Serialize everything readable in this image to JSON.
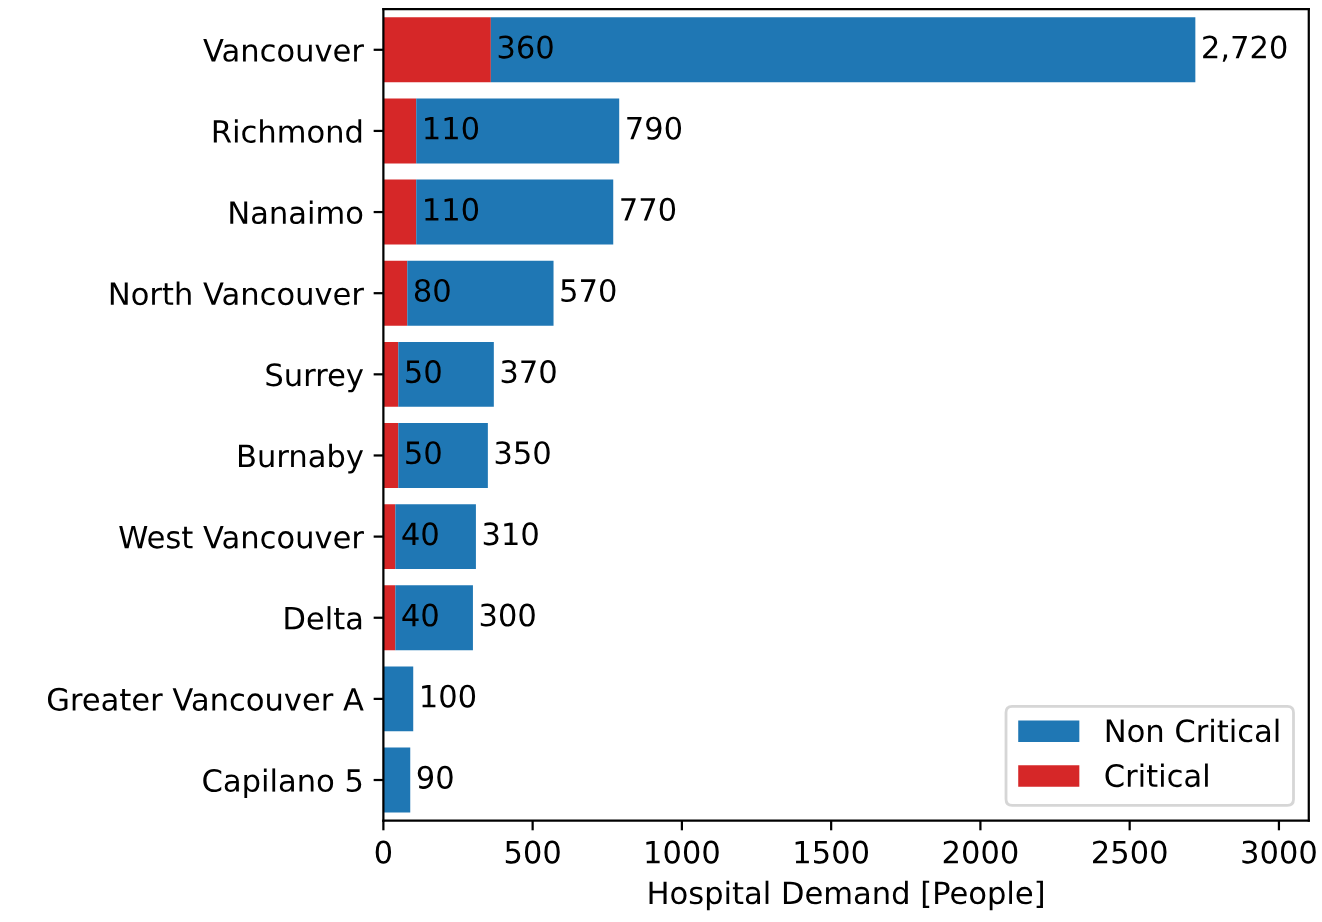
{
  "chart_data": {
    "type": "bar",
    "orientation": "horizontal",
    "stacked": true,
    "xlabel": "Hospital Demand [People]",
    "categories": [
      "Vancouver",
      "Richmond",
      "Nanaimo",
      "North Vancouver",
      "Surrey",
      "Burnaby",
      "West Vancouver",
      "Delta",
      "Greater Vancouver A",
      "Capilano 5"
    ],
    "series": [
      {
        "name": "Critical",
        "color": "#d62728",
        "values": [
          360,
          110,
          110,
          80,
          50,
          50,
          40,
          40,
          null,
          null
        ],
        "value_labels": [
          "360",
          "110",
          "110",
          "80",
          "50",
          "50",
          "40",
          "40",
          null,
          null
        ]
      },
      {
        "name": "Non Critical",
        "color": "#1f77b4",
        "values": [
          2360,
          680,
          660,
          490,
          320,
          300,
          270,
          260,
          100,
          90
        ]
      }
    ],
    "totals": [
      "2,720",
      "790",
      "770",
      "570",
      "370",
      "350",
      "310",
      "300",
      "100",
      "90"
    ],
    "xlim": [
      0,
      3100
    ],
    "xticks": [
      0,
      500,
      1000,
      1500,
      2000,
      2500,
      3000
    ],
    "grid": false,
    "legend": "bottom right"
  }
}
